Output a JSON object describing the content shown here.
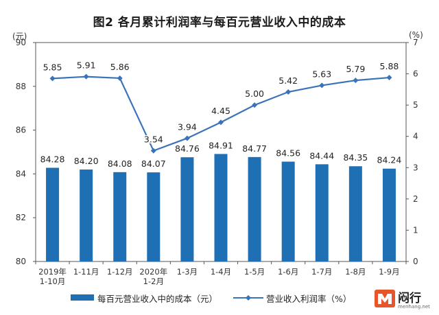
{
  "title": "图2  各月累计利润率与每百元营业收入中的成本",
  "units": {
    "left": "(元)",
    "right": "(%)"
  },
  "legend": {
    "bar_label": "每百元营业收入中的成本（元）",
    "line_label": "营业收入利润率（%）"
  },
  "watermark": {
    "brand": "闷行",
    "site": "menhang.net"
  },
  "colors": {
    "bar": "#1f6fb5",
    "line": "#3a73b8"
  },
  "chart_data": {
    "type": "bar+line",
    "categories": [
      "2019年\n1-10月",
      "1-11月",
      "1-12月",
      "2020年\n1-2月",
      "1-3月",
      "1-4月",
      "1-5月",
      "1-6月",
      "1-7月",
      "1-8月",
      "1-9月"
    ],
    "series": [
      {
        "name": "每百元营业收入中的成本（元）",
        "type": "bar",
        "axis": "left",
        "values": [
          84.28,
          84.2,
          84.08,
          84.07,
          84.76,
          84.91,
          84.77,
          84.56,
          84.44,
          84.35,
          84.24
        ],
        "labels": [
          "84.28",
          "84.20",
          "84.08",
          "84.07",
          "84.76",
          "84.91",
          "84.77",
          "84.56",
          "84.44",
          "84.35",
          "84.24"
        ]
      },
      {
        "name": "营业收入利润率（%）",
        "type": "line",
        "axis": "right",
        "values": [
          5.85,
          5.91,
          5.86,
          3.54,
          3.94,
          4.45,
          5.0,
          5.42,
          5.63,
          5.79,
          5.88
        ],
        "labels": [
          "5.85",
          "5.91",
          "5.86",
          "3.54",
          "3.94",
          "4.45",
          "5.00",
          "5.42",
          "5.63",
          "5.79",
          "5.88"
        ]
      }
    ],
    "y_left": {
      "min": 80,
      "max": 90,
      "ticks": [
        "80",
        "82",
        "84",
        "86",
        "88",
        "90"
      ]
    },
    "y_right": {
      "min": 0,
      "max": 7,
      "ticks": [
        "0",
        "1",
        "2",
        "3",
        "4",
        "5",
        "6",
        "7"
      ]
    },
    "grid": false
  }
}
